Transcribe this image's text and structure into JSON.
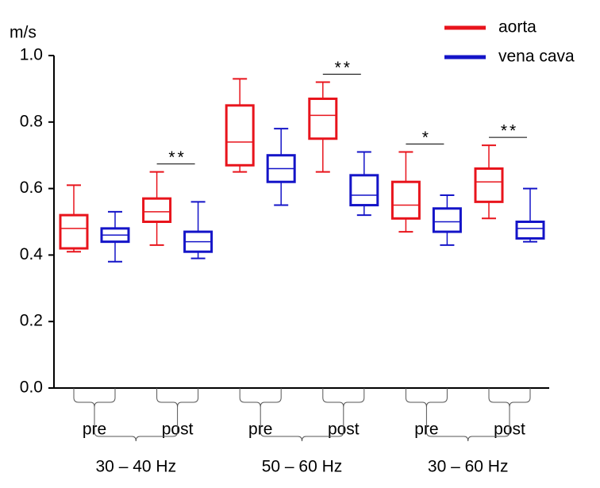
{
  "chart_data": {
    "type": "box",
    "y_label": "m/s",
    "categories": [
      "pre",
      "post",
      "pre",
      "post",
      "pre",
      "post"
    ],
    "groups": [
      "30 – 40 Hz",
      "50 – 60 Hz",
      "30 – 60 Hz"
    ],
    "series": [
      {
        "name": "aorta",
        "color": "#e8141c",
        "values": [
          [
            0.41,
            0.42,
            0.48,
            0.52,
            0.61
          ],
          [
            0.43,
            0.5,
            0.53,
            0.57,
            0.65
          ],
          [
            0.65,
            0.67,
            0.74,
            0.85,
            0.93
          ],
          [
            0.65,
            0.75,
            0.82,
            0.87,
            0.92
          ],
          [
            0.47,
            0.51,
            0.55,
            0.62,
            0.71
          ],
          [
            0.51,
            0.56,
            0.62,
            0.66,
            0.73
          ]
        ]
      },
      {
        "name": "vena cava",
        "color": "#1414c8",
        "values": [
          [
            0.38,
            0.44,
            0.46,
            0.48,
            0.53
          ],
          [
            0.39,
            0.41,
            0.44,
            0.47,
            0.56
          ],
          [
            0.55,
            0.62,
            0.66,
            0.7,
            0.78
          ],
          [
            0.52,
            0.55,
            0.58,
            0.64,
            0.71
          ],
          [
            0.43,
            0.47,
            0.5,
            0.54,
            0.58
          ],
          [
            0.44,
            0.45,
            0.48,
            0.5,
            0.6
          ]
        ]
      }
    ],
    "significance": [
      null,
      "**",
      null,
      "**",
      "*",
      "**"
    ],
    "ylim": [
      0,
      1
    ],
    "yticks": [
      {
        "value": 0,
        "label": "0.0"
      },
      {
        "value": 0.2,
        "label": "0.2"
      },
      {
        "value": 0.4,
        "label": "0.4"
      },
      {
        "value": 0.6,
        "label": "0.6"
      },
      {
        "value": 0.8,
        "label": "0.8"
      },
      {
        "value": 1,
        "label": "1.0"
      }
    ],
    "legend": "upper right"
  }
}
